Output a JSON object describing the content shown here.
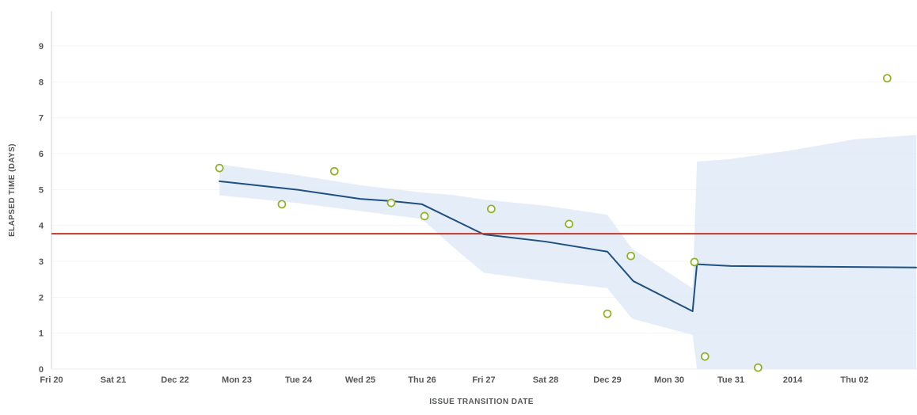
{
  "page": {
    "background": "#ffffff"
  },
  "chart_data": {
    "type": "line",
    "subtype": "control-chart (scatter + rolling average + std-dev band)",
    "title": "",
    "xlabel": "ISSUE TRANSITION DATE",
    "ylabel": "ELAPSED TIME (DAYS)",
    "grid": "faint horizontal",
    "legend": "none",
    "xlim": [
      0,
      14
    ],
    "ylim": [
      0,
      9.95
    ],
    "y_ticks": [
      0,
      1,
      2,
      3,
      4,
      5,
      6,
      7,
      8,
      9
    ],
    "x_tick_labels": [
      "Fri 20",
      "Sat 21",
      "Dec 22",
      "Mon 23",
      "Tue 24",
      "Wed 25",
      "Thu 26",
      "Fri 27",
      "Sat 28",
      "Dec 29",
      "Mon 30",
      "Tue 31",
      "2014",
      "Thu 02"
    ],
    "average": 3.77,
    "scatter_points": [
      [
        2.72,
        5.6
      ],
      [
        3.73,
        4.59
      ],
      [
        4.58,
        5.51
      ],
      [
        5.5,
        4.63
      ],
      [
        6.04,
        4.26
      ],
      [
        7.12,
        4.46
      ],
      [
        8.38,
        4.04
      ],
      [
        9.0,
        1.54
      ],
      [
        9.38,
        3.15
      ],
      [
        10.41,
        2.98
      ],
      [
        10.58,
        0.35
      ],
      [
        11.44,
        0.04
      ],
      [
        13.53,
        8.1
      ]
    ],
    "rolling_average": [
      [
        2.72,
        5.23
      ],
      [
        4.0,
        4.99
      ],
      [
        5.0,
        4.74
      ],
      [
        5.5,
        4.68
      ],
      [
        6.0,
        4.59
      ],
      [
        7.0,
        3.75
      ],
      [
        8.0,
        3.55
      ],
      [
        9.0,
        3.27
      ],
      [
        9.42,
        2.45
      ],
      [
        10.38,
        1.61
      ],
      [
        10.45,
        2.92
      ],
      [
        11.0,
        2.87
      ],
      [
        14.0,
        2.83
      ]
    ],
    "band": {
      "upper": [
        [
          2.72,
          5.7
        ],
        [
          4.0,
          5.4
        ],
        [
          5.0,
          5.12
        ],
        [
          6.0,
          4.92
        ],
        [
          6.5,
          4.85
        ],
        [
          7.0,
          4.72
        ],
        [
          8.0,
          4.55
        ],
        [
          9.0,
          4.3
        ],
        [
          9.4,
          3.35
        ],
        [
          10.38,
          2.25
        ],
        [
          10.45,
          5.78
        ],
        [
          11.0,
          5.85
        ],
        [
          12.0,
          6.1
        ],
        [
          13.0,
          6.4
        ],
        [
          14.0,
          6.52
        ]
      ],
      "lower": [
        [
          14.0,
          0.0
        ],
        [
          10.45,
          0.0
        ],
        [
          10.38,
          0.95
        ],
        [
          9.4,
          1.4
        ],
        [
          9.0,
          2.25
        ],
        [
          8.0,
          2.45
        ],
        [
          7.0,
          2.68
        ],
        [
          6.5,
          3.4
        ],
        [
          6.0,
          4.18
        ],
        [
          5.0,
          4.4
        ],
        [
          4.0,
          4.62
        ],
        [
          2.72,
          4.84
        ]
      ]
    },
    "colors": {
      "band": "#dce8f6",
      "rolling_average_line": "#205081",
      "average_line": "#c0392b",
      "issue_point_stroke": "#8eb021",
      "issue_point_fill": "#ffffff",
      "axis_line": "#cfd3d8",
      "gridline": "#f3f4f6",
      "tick_text": "#54575a"
    }
  }
}
